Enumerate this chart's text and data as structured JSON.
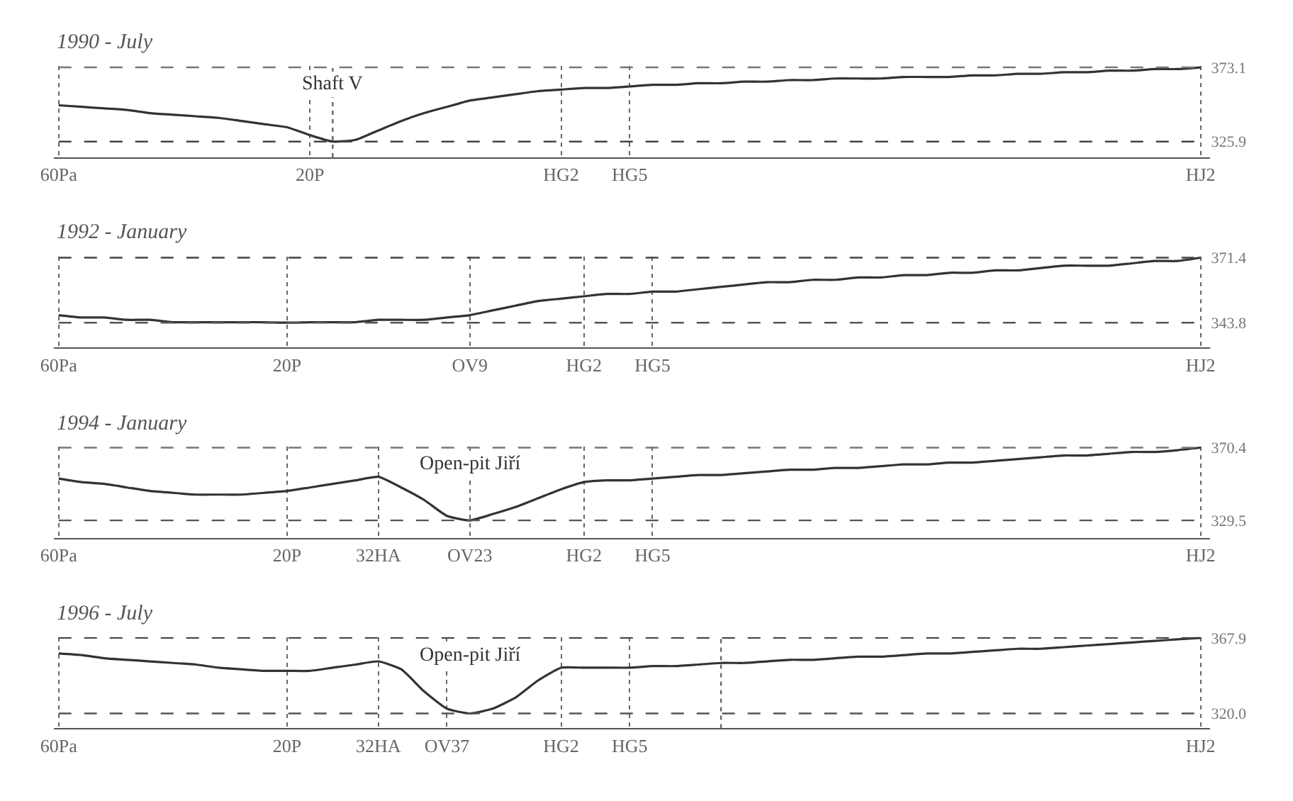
{
  "chart_data": [
    {
      "type": "line",
      "title": "1990 - July",
      "color": "#333333",
      "line_style": "solid",
      "marker": "none",
      "grid": "x",
      "categories": [
        "60Pa",
        null,
        null,
        null,
        null,
        null,
        null,
        null,
        null,
        null,
        null,
        "20P",
        null,
        null,
        null,
        null,
        null,
        null,
        null,
        null,
        null,
        null,
        "HG2",
        null,
        null,
        "HG5",
        null,
        null,
        null,
        null,
        null,
        null,
        null,
        null,
        null,
        null,
        null,
        null,
        null,
        null,
        null,
        null,
        null,
        null,
        null,
        null,
        null,
        null,
        null,
        null,
        "HJ2"
      ],
      "values": [
        349,
        348,
        347,
        346,
        344,
        343,
        342,
        341,
        339,
        337,
        335,
        330,
        325.9,
        327,
        333,
        339,
        344,
        348,
        352,
        354,
        356,
        358,
        359,
        360,
        360,
        361,
        362,
        362,
        363,
        363,
        364,
        364,
        365,
        365,
        366,
        366,
        366,
        367,
        367,
        367,
        368,
        368,
        369,
        369,
        370,
        370,
        371,
        371,
        372,
        372,
        373.1
      ],
      "ylim": [
        315.9,
        374
      ],
      "yticks": [
        325.9,
        373.1
      ],
      "ref_lines": [
        {
          "axis": "y",
          "value": 373.1,
          "line_style": "dashed",
          "color": "#777777"
        },
        {
          "axis": "y",
          "value": 325.9,
          "line_style": "dashed",
          "color": "#444444"
        }
      ],
      "annotations": [
        "Shaft V"
      ]
    },
    {
      "type": "line",
      "title": "1992 - January",
      "color": "#333333",
      "line_style": "solid",
      "marker": "none",
      "grid": "x",
      "categories": [
        "60Pa",
        null,
        null,
        null,
        null,
        null,
        null,
        null,
        null,
        null,
        "20P",
        null,
        null,
        null,
        null,
        null,
        null,
        null,
        "OV9",
        null,
        null,
        null,
        null,
        "HG2",
        null,
        null,
        "HG5",
        null,
        null,
        null,
        null,
        null,
        null,
        null,
        null,
        null,
        null,
        null,
        null,
        null,
        null,
        null,
        null,
        null,
        null,
        null,
        null,
        null,
        null,
        null,
        "HJ2"
      ],
      "values": [
        347,
        346,
        346,
        345,
        345,
        344,
        344,
        344,
        344,
        344,
        343.8,
        344,
        344,
        344,
        345,
        345,
        345,
        346,
        347,
        349,
        351,
        353,
        354,
        355,
        356,
        356,
        357,
        357,
        358,
        359,
        360,
        361,
        361,
        362,
        362,
        363,
        363,
        364,
        364,
        365,
        365,
        366,
        366,
        367,
        368,
        368,
        368,
        369,
        370,
        370,
        371.4
      ],
      "ylim": [
        333.2,
        372
      ],
      "yticks": [
        343.8,
        371.4
      ],
      "ref_lines": [
        {
          "axis": "y",
          "value": 371.4,
          "line_style": "dashed",
          "color": "#444444"
        },
        {
          "axis": "y",
          "value": 343.8,
          "line_style": "dashed",
          "color": "#555555"
        }
      ]
    },
    {
      "type": "line",
      "title": "1994 - January",
      "color": "#333333",
      "line_style": "solid",
      "marker": "none",
      "grid": "x",
      "categories": [
        "60Pa",
        null,
        null,
        null,
        null,
        null,
        null,
        null,
        null,
        null,
        "20P",
        null,
        null,
        null,
        "32HA",
        null,
        null,
        null,
        "OV23",
        null,
        null,
        null,
        null,
        "HG2",
        null,
        null,
        "HG5",
        null,
        null,
        null,
        null,
        null,
        null,
        null,
        null,
        null,
        null,
        null,
        null,
        null,
        null,
        null,
        null,
        null,
        null,
        null,
        null,
        null,
        null,
        null,
        "HJ2"
      ],
      "values": [
        353,
        351,
        350,
        348,
        346,
        345,
        344,
        344,
        344,
        345,
        346,
        348,
        350,
        352,
        354,
        348,
        341,
        332,
        329.5,
        333,
        337,
        342,
        347,
        351,
        352,
        352,
        353,
        354,
        355,
        355,
        356,
        357,
        358,
        358,
        359,
        359,
        360,
        361,
        361,
        362,
        362,
        363,
        364,
        365,
        366,
        366,
        367,
        368,
        368,
        369,
        370.4
      ],
      "ylim": [
        319.6,
        371
      ],
      "yticks": [
        329.5,
        370.4
      ],
      "ref_lines": [
        {
          "axis": "y",
          "value": 370.4,
          "line_style": "dashed",
          "color": "#777777"
        },
        {
          "axis": "y",
          "value": 329.5,
          "line_style": "dashed",
          "color": "#555555"
        }
      ],
      "annotations": [
        "Open-pit Jiří"
      ]
    },
    {
      "type": "line",
      "title": "1996 - July",
      "color": "#333333",
      "line_style": "solid",
      "marker": "none",
      "grid": "x",
      "categories": [
        "60Pa",
        null,
        null,
        null,
        null,
        null,
        null,
        null,
        null,
        null,
        "20P",
        null,
        null,
        null,
        "32HA",
        null,
        null,
        "OV37",
        null,
        null,
        null,
        null,
        "HG2",
        null,
        null,
        "HG5",
        null,
        null,
        null,
        null,
        null,
        null,
        null,
        null,
        null,
        null,
        null,
        null,
        null,
        null,
        null,
        null,
        null,
        null,
        null,
        null,
        null,
        null,
        null,
        null,
        "HJ2"
      ],
      "values": [
        358,
        357,
        355,
        354,
        353,
        352,
        351,
        349,
        348,
        347,
        347,
        347,
        349,
        351,
        353,
        348,
        334,
        323,
        320.0,
        323,
        330,
        341,
        349,
        349,
        349,
        349,
        350,
        350,
        351,
        352,
        352,
        353,
        354,
        354,
        355,
        356,
        356,
        357,
        358,
        358,
        359,
        360,
        361,
        361,
        362,
        363,
        364,
        365,
        366,
        367,
        367.9
      ],
      "ylim": [
        310.6,
        368.5
      ],
      "yticks": [
        {
          "value": 320.0,
          "label": "320.0"
        },
        367.9
      ],
      "ref_lines": [
        {
          "axis": "y",
          "value": 367.9,
          "line_style": "dashed",
          "color": "#444444"
        },
        {
          "axis": "y",
          "value": 320.0,
          "line_style": "dashed",
          "color": "#555555"
        }
      ],
      "annotations": [
        "Open-pit Jiří"
      ]
    }
  ]
}
